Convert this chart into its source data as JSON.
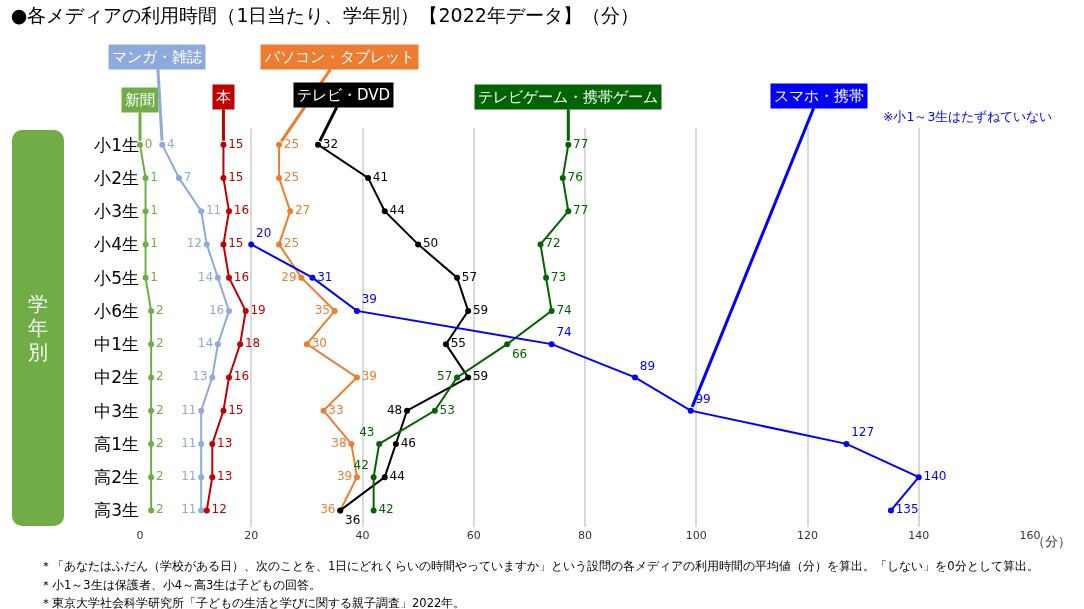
{
  "chart_data": {
    "type": "line",
    "orientation": "horizontal",
    "title": "●各メディアの利用時間（1日当たり、学年別）【2022年データ】（分）",
    "ylabel": "学年別",
    "xlabel": "（分）",
    "categories": [
      "小1生",
      "小2生",
      "小3生",
      "小4生",
      "小5生",
      "小6生",
      "中1生",
      "中2生",
      "中3生",
      "高1生",
      "高2生",
      "高3生"
    ],
    "series": [
      {
        "name": "新聞",
        "color": "#70ad47",
        "values": [
          0,
          1,
          1,
          1,
          1,
          2,
          2,
          2,
          2,
          2,
          2,
          2
        ]
      },
      {
        "name": "マンガ・雑誌",
        "color": "#8eaadb",
        "values": [
          4,
          7,
          11,
          12,
          14,
          16,
          14,
          13,
          11,
          11,
          11,
          11
        ]
      },
      {
        "name": "本",
        "color": "#c00000",
        "values": [
          15,
          15,
          16,
          15,
          16,
          19,
          18,
          16,
          15,
          13,
          13,
          12
        ]
      },
      {
        "name": "パソコン・タブレット",
        "color": "#ed7d31",
        "values": [
          25,
          25,
          27,
          25,
          29,
          35,
          30,
          39,
          33,
          38,
          39,
          36
        ]
      },
      {
        "name": "テレビ・DVD",
        "color": "#000000",
        "values": [
          32,
          41,
          44,
          50,
          57,
          59,
          55,
          59,
          48,
          46,
          44,
          36
        ]
      },
      {
        "name": "テレビゲーム・携帯ゲーム",
        "color": "#006400",
        "values": [
          77,
          76,
          77,
          72,
          73,
          74,
          66,
          57,
          53,
          43,
          42,
          42
        ]
      },
      {
        "name": "スマホ・携帯",
        "color": "#0000ff",
        "values": [
          null,
          null,
          null,
          20,
          31,
          39,
          74,
          89,
          99,
          127,
          140,
          135
        ]
      }
    ],
    "xlim": [
      0,
      160
    ],
    "xticks": [
      0,
      20,
      40,
      60,
      80,
      100,
      120,
      140,
      160
    ],
    "grid": "x",
    "legend": false,
    "marker": "circle",
    "line_style": "solid",
    "data_labels": true,
    "annotations": [
      "※小1～3生はたずねていない",
      "＊「あなたはふだん（学校がある日）、次のことを、1日にどれくらいの時間やっていますか」という設問の各メディアの利用時間の平均値（分）を算出。「しない」を0分として算出。",
      "＊小1～3生は保護者、小4～高3生は子どもの回答。",
      "＊東京大学社会科学研究所「子どもの生活と学びに関する親子調査」2022年。"
    ]
  }
}
